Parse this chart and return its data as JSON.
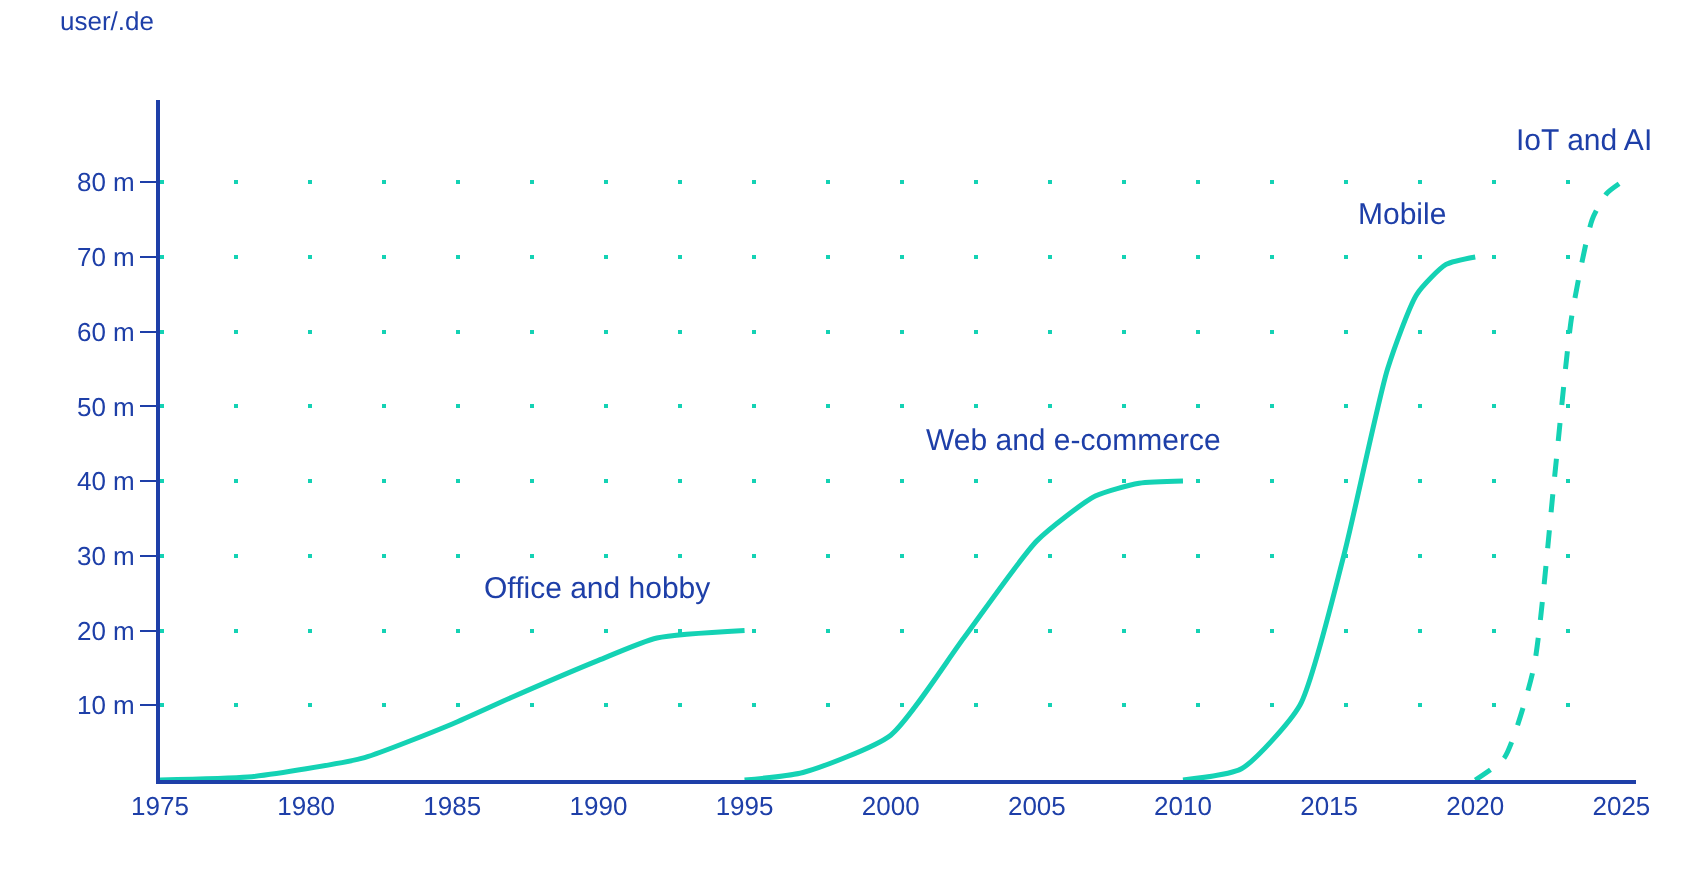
{
  "chart_data": {
    "type": "line",
    "ylabel": "user/.de",
    "series": [
      {
        "name": "Office and hobby",
        "color": "#14d2b4",
        "line_style": "solid",
        "x": [
          1975,
          1978,
          1980,
          1982,
          1985,
          1987,
          1990,
          1992,
          1995
        ],
        "values": [
          0,
          0.4,
          1.5,
          3,
          7.5,
          11,
          16,
          19,
          20
        ]
      },
      {
        "name": "Web and e-commerce",
        "color": "#14d2b4",
        "line_style": "solid",
        "x": [
          1995,
          1997,
          2000,
          2002.5,
          2005,
          2007,
          2008.5,
          2010
        ],
        "values": [
          0,
          1,
          6,
          19,
          32,
          38,
          39.7,
          40
        ]
      },
      {
        "name": "Mobile",
        "color": "#14d2b4",
        "line_style": "solid",
        "x": [
          2010,
          2012,
          2014,
          2015.5,
          2017,
          2018,
          2019,
          2020
        ],
        "values": [
          0,
          1.5,
          10,
          30,
          55,
          65,
          69,
          70
        ]
      },
      {
        "name": "IoT and AI",
        "color": "#14d2b4",
        "line_style": "dashed",
        "x": [
          2020,
          2021,
          2022,
          2022.7,
          2023.3,
          2024,
          2024.5,
          2025
        ],
        "values": [
          0,
          3,
          15,
          40,
          62,
          75,
          78.5,
          80
        ]
      }
    ],
    "xlim": [
      1975,
      2025.5
    ],
    "xticks": [
      1975,
      1980,
      1985,
      1990,
      1995,
      2000,
      2005,
      2010,
      2015,
      2020,
      2025
    ],
    "ylim": [
      0,
      91
    ],
    "yticks": [
      {
        "value": 10,
        "label": "10 m"
      },
      {
        "value": 20,
        "label": "20 m"
      },
      {
        "value": 30,
        "label": "30 m"
      },
      {
        "value": 40,
        "label": "40 m"
      },
      {
        "value": 50,
        "label": "50 m"
      },
      {
        "value": 60,
        "label": "60 m"
      },
      {
        "value": 70,
        "label": "70 m"
      },
      {
        "value": 80,
        "label": "80 m"
      }
    ],
    "grid": "y",
    "legend": false,
    "marker": "none"
  }
}
